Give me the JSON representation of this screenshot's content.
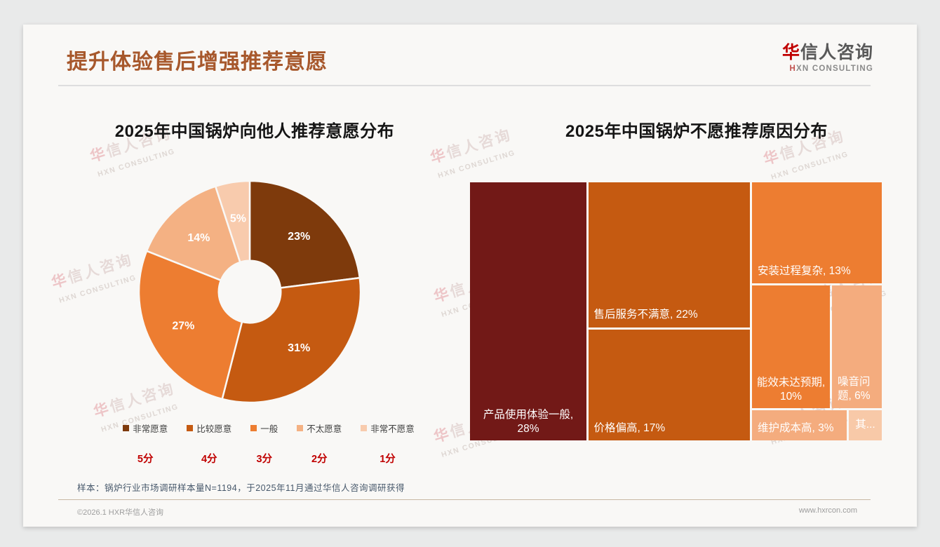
{
  "header": {
    "title": "提升体验售后增强推荐意愿"
  },
  "logo": {
    "cn_first": "华",
    "cn_rest": "信人咨询",
    "en_first": "H",
    "en_rest": "XN CONSULTING"
  },
  "watermark": {
    "line1_first": "华",
    "line1_rest": "信人咨询",
    "line2": "HXN CONSULTING"
  },
  "chart_data": [
    {
      "type": "pie",
      "subtype": "donut",
      "title": "2025年中国锅炉向他人推荐意愿分布",
      "categories": [
        "非常愿意",
        "比较愿意",
        "一般",
        "不太愿意",
        "非常不愿意"
      ],
      "values": [
        23,
        31,
        27,
        14,
        5
      ],
      "data_labels": [
        "23%",
        "31%",
        "27%",
        "14%",
        "5%"
      ],
      "scores": [
        "5分",
        "4分",
        "3分",
        "2分",
        "1分"
      ],
      "colors": [
        "#7E3A0C",
        "#C55A11",
        "#ED7D31",
        "#F4B183",
        "#F8CBAD"
      ],
      "hole_ratio": 0.28,
      "start_angle_deg": 0,
      "direction": "clockwise",
      "legend_position": "bottom"
    },
    {
      "type": "treemap",
      "title": "2025年中国锅炉不愿推荐原因分布",
      "items": [
        {
          "label": "产品使用体验一般",
          "value": 28,
          "text": "产品使用体验一般, 28%",
          "color": "#721917"
        },
        {
          "label": "售后服务不满意",
          "value": 22,
          "text": "售后服务不满意, 22%",
          "color": "#C55A11"
        },
        {
          "label": "价格偏高",
          "value": 17,
          "text": "价格偏高, 17%",
          "color": "#C55A11"
        },
        {
          "label": "安装过程复杂",
          "value": 13,
          "text": "安装过程复杂, 13%",
          "color": "#ED7D31"
        },
        {
          "label": "能效未达预期",
          "value": 10,
          "text": "能效未达预期, 10%",
          "color": "#ED7D31"
        },
        {
          "label": "噪音问题",
          "value": 6,
          "text": "噪音问题, 6%",
          "color": "#F4AC7E"
        },
        {
          "label": "维护成本高",
          "value": 3,
          "text": "维护成本高, 3%",
          "color": "#F4AC7E"
        },
        {
          "label": "其他",
          "value": 1,
          "text": "其...",
          "color": "#F8C9A8"
        }
      ]
    }
  ],
  "footnote": "样本：锅炉行业市场调研样本量N=1194，于2025年11月通过华信人咨询调研获得",
  "footer": {
    "copyright": "©2026.1 HXR华信人咨询",
    "website": "www.hxrcon.com"
  }
}
